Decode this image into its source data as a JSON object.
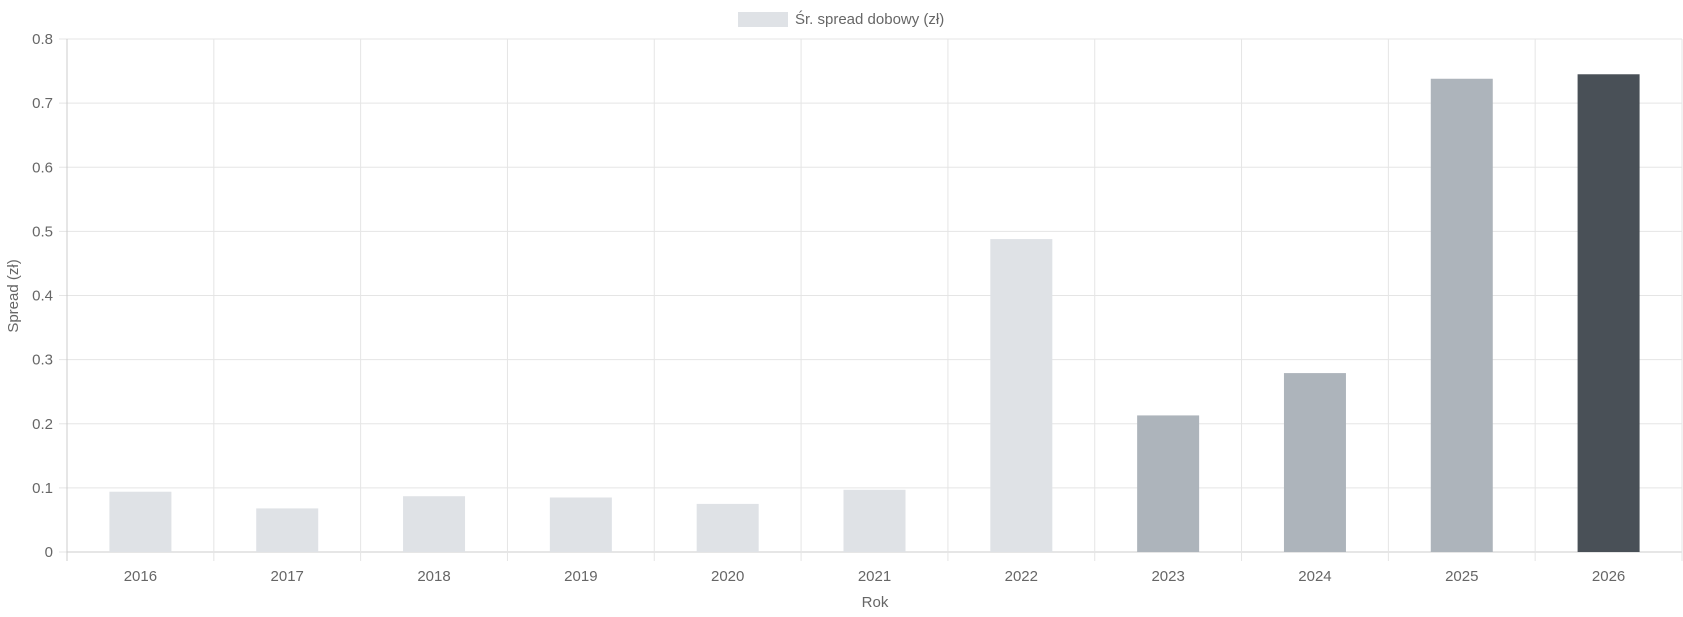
{
  "chart_data": {
    "type": "bar",
    "title": "",
    "xlabel": "Rok",
    "ylabel": "Spread (zł)",
    "legend": {
      "label": "Śr. spread dobowy (zł)",
      "position": "top-center",
      "swatch_color": "#dfe2e6"
    },
    "categories": [
      "2016",
      "2017",
      "2018",
      "2019",
      "2020",
      "2021",
      "2022",
      "2023",
      "2024",
      "2025",
      "2026"
    ],
    "series": [
      {
        "name": "Śr. spread dobowy (zł)",
        "values": [
          0.094,
          0.068,
          0.087,
          0.085,
          0.075,
          0.097,
          0.488,
          0.213,
          0.279,
          0.738,
          0.745
        ],
        "colors": [
          "#dfe2e6",
          "#dfe2e6",
          "#dfe2e6",
          "#dfe2e6",
          "#dfe2e6",
          "#dfe2e6",
          "#dfe2e6",
          "#adb4bb",
          "#adb4bb",
          "#adb4bb",
          "#495057"
        ]
      }
    ],
    "ylim": [
      0,
      0.8
    ],
    "yticks": [
      "0",
      "0.1",
      "0.2",
      "0.3",
      "0.4",
      "0.5",
      "0.6",
      "0.7",
      "0.8"
    ],
    "grid": true,
    "colors": {
      "grid": "#e5e5e5",
      "axis": "#cccccc",
      "text": "#666666"
    }
  }
}
